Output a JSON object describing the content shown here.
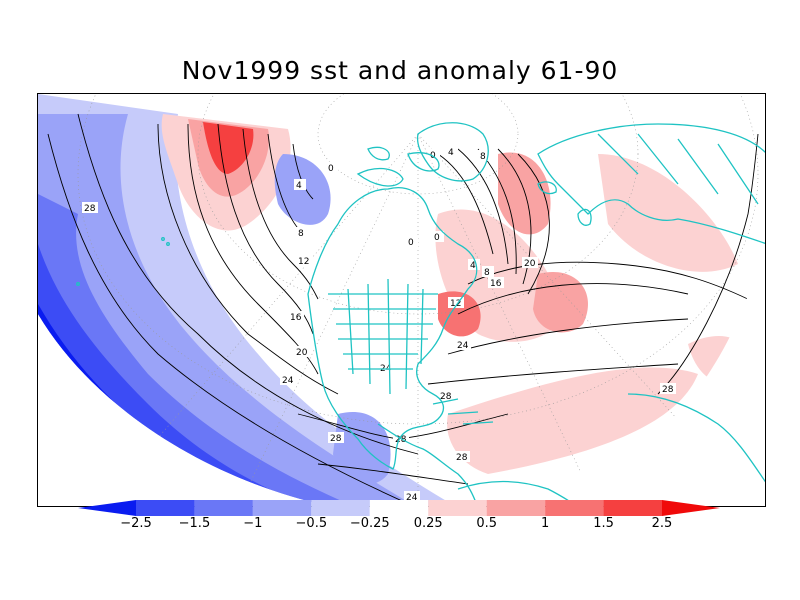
{
  "title": "Nov1999 sst and anomaly 61-90",
  "colorbar": {
    "labels": [
      "-2.5",
      "-1.5",
      "-1",
      "-0.5",
      "-0.25",
      "0.25",
      "0.5",
      "1",
      "1.5",
      "2.5"
    ],
    "colors": [
      "#0a1cf0",
      "#3c4cf5",
      "#6a77f6",
      "#9aa3f8",
      "#c6cbfa",
      "#ffffff",
      "#fcd2d2",
      "#f9a3a3",
      "#f77272",
      "#f54040",
      "#f00a0a"
    ]
  },
  "map": {
    "contour_labels": [
      "28",
      "24",
      "20",
      "16",
      "12",
      "8",
      "4",
      "0",
      "0",
      "0",
      "4",
      "8",
      "12",
      "16",
      "20",
      "24",
      "24",
      "28",
      "28",
      "28",
      "28",
      "28",
      "0",
      "4",
      "8",
      "24"
    ],
    "land_outline_color": "#1fc3c3"
  }
}
